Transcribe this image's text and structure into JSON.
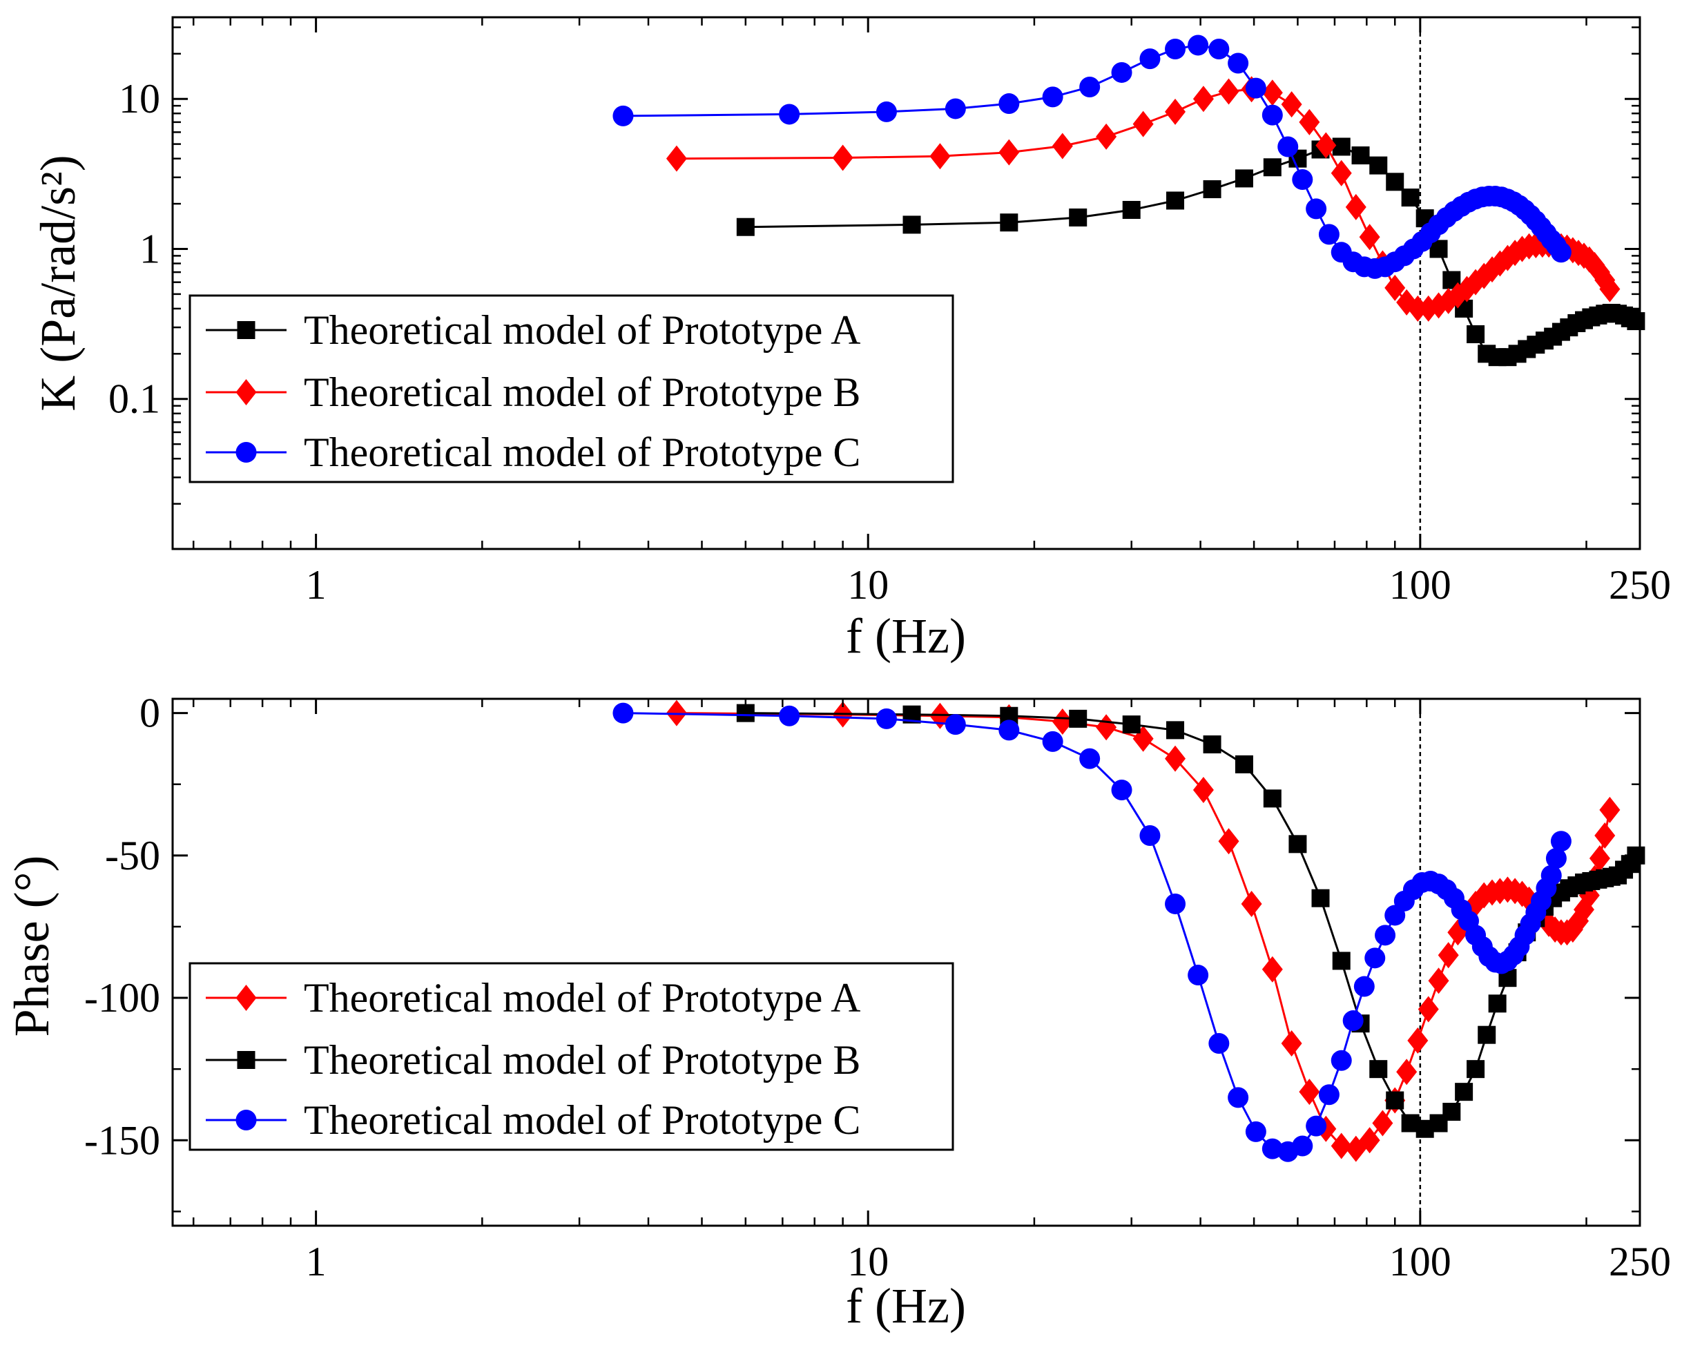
{
  "chart_data": [
    {
      "type": "line",
      "id": "magnitude",
      "xlabel": "f (Hz)",
      "ylabel": "K (Pa/rad/s²)",
      "xscale": "log",
      "yscale": "log",
      "xlim": [
        0.55,
        250
      ],
      "ylim": [
        0.01,
        35
      ],
      "xticks": [
        1,
        10,
        100,
        250
      ],
      "xtick_labels": [
        "1",
        "10",
        "100",
        "250"
      ],
      "yticks": [
        0.1,
        1,
        10
      ],
      "ytick_labels": [
        "0.1",
        "1",
        "10"
      ],
      "ref_line_x": 100,
      "legend_location": "center-left",
      "series": [
        {
          "name": "Theoretical model of Prototype A",
          "color": "#000000",
          "marker": "square",
          "x": [
            6,
            12,
            18,
            24,
            30,
            36,
            42,
            48,
            54,
            60,
            66,
            72,
            78,
            84,
            90,
            96,
            102,
            108,
            114,
            120,
            126,
            132,
            138,
            144,
            150,
            156,
            162,
            168,
            174,
            180,
            186,
            192,
            198,
            204,
            210,
            216,
            222,
            228,
            234,
            240,
            246
          ],
          "y": [
            1.4,
            1.45,
            1.5,
            1.62,
            1.82,
            2.1,
            2.5,
            2.95,
            3.5,
            4.0,
            4.6,
            4.8,
            4.2,
            3.6,
            2.8,
            2.2,
            1.6,
            1.0,
            0.62,
            0.4,
            0.27,
            0.2,
            0.19,
            0.19,
            0.2,
            0.215,
            0.23,
            0.245,
            0.26,
            0.28,
            0.3,
            0.32,
            0.335,
            0.35,
            0.36,
            0.37,
            0.375,
            0.37,
            0.36,
            0.345,
            0.33
          ]
        },
        {
          "name": "Theoretical model of Prototype B",
          "color": "#ff0000",
          "marker": "diamond",
          "x": [
            4.5,
            9,
            13.5,
            18,
            22.5,
            27,
            31.5,
            36,
            40.5,
            45,
            49.5,
            54,
            58.5,
            63,
            67.5,
            72,
            76.5,
            81,
            85.5,
            90,
            94.5,
            99,
            103.5,
            108,
            112.5,
            117,
            121.5,
            126,
            130.5,
            135,
            139.5,
            144,
            148.5,
            153,
            157.5,
            162,
            166.5,
            171,
            175.5,
            180,
            184.5,
            189,
            193.5,
            198,
            202.5,
            207,
            211.5,
            216,
            220.5
          ],
          "y": [
            4.0,
            4.05,
            4.15,
            4.4,
            4.85,
            5.6,
            6.8,
            8.2,
            10.0,
            11.2,
            11.6,
            11.0,
            9.2,
            7.0,
            4.9,
            3.2,
            1.9,
            1.2,
            0.8,
            0.55,
            0.44,
            0.4,
            0.4,
            0.42,
            0.45,
            0.49,
            0.54,
            0.6,
            0.66,
            0.73,
            0.8,
            0.87,
            0.94,
            1.0,
            1.04,
            1.06,
            1.07,
            1.07,
            1.06,
            1.04,
            1.02,
            0.98,
            0.94,
            0.9,
            0.85,
            0.78,
            0.7,
            0.62,
            0.54
          ]
        },
        {
          "name": "Theoretical model of Prototype C",
          "color": "#0000ff",
          "marker": "circle",
          "x": [
            3.6,
            7.2,
            10.8,
            14.4,
            18,
            21.6,
            25.2,
            28.8,
            32.4,
            36,
            39.6,
            43.2,
            46.8,
            50.4,
            54,
            57.6,
            61.2,
            64.8,
            68.4,
            72,
            75.6,
            79.2,
            82.8,
            86.4,
            90,
            93.6,
            97.2,
            100.8,
            104.4,
            108,
            111.6,
            115.2,
            118.8,
            122.4,
            126,
            129.6,
            133.2,
            136.8,
            140.4,
            144,
            147.6,
            151.2,
            154.8,
            158.4,
            162,
            165.6,
            169.2,
            172.8,
            176.4,
            180
          ],
          "y": [
            7.7,
            7.9,
            8.2,
            8.6,
            9.3,
            10.3,
            12.0,
            15.0,
            18.5,
            21.5,
            22.8,
            21.5,
            17.3,
            11.8,
            7.8,
            4.8,
            2.9,
            1.85,
            1.25,
            0.95,
            0.82,
            0.76,
            0.74,
            0.76,
            0.82,
            0.9,
            1.0,
            1.12,
            1.28,
            1.45,
            1.62,
            1.78,
            1.92,
            2.05,
            2.15,
            2.22,
            2.25,
            2.25,
            2.22,
            2.15,
            2.06,
            1.95,
            1.82,
            1.68,
            1.54,
            1.4,
            1.27,
            1.15,
            1.05,
            0.95
          ]
        }
      ]
    },
    {
      "type": "line",
      "id": "phase",
      "xlabel": "f (Hz)",
      "ylabel": "Phase (°)",
      "xscale": "log",
      "yscale": "linear",
      "xlim": [
        0.55,
        250
      ],
      "ylim": [
        -180,
        5
      ],
      "xticks": [
        1,
        10,
        100,
        250
      ],
      "xtick_labels": [
        "1",
        "10",
        "100",
        "250"
      ],
      "yticks": [
        0,
        -50,
        -100,
        -150
      ],
      "ytick_labels": [
        "0",
        "-50",
        "-100",
        "-150"
      ],
      "ref_line_x": 100,
      "legend_location": "lower-left",
      "series": [
        {
          "name": "Theoretical model of Prototype A",
          "color": "#ff0000",
          "marker": "diamond",
          "x": [
            4.5,
            9,
            13.5,
            18,
            22.5,
            27,
            31.5,
            36,
            40.5,
            45,
            49.5,
            54,
            58.5,
            63,
            67.5,
            72,
            76.5,
            81,
            85.5,
            90,
            94.5,
            99,
            103.5,
            108,
            112.5,
            117,
            121.5,
            126,
            130.5,
            135,
            139.5,
            144,
            148.5,
            153,
            157.5,
            162,
            166.5,
            171,
            175.5,
            180,
            184.5,
            189,
            193.5,
            198,
            202.5,
            207,
            211.5,
            216,
            220.5
          ],
          "y": [
            0,
            -0.5,
            -1,
            -1.5,
            -3,
            -5,
            -9,
            -16,
            -27,
            -45,
            -67,
            -90,
            -116,
            -133,
            -146,
            -152,
            -153,
            -150,
            -144,
            -136,
            -126,
            -115,
            -104,
            -94,
            -85,
            -77,
            -71,
            -67,
            -64,
            -63,
            -62.5,
            -62,
            -62.5,
            -63.5,
            -65.5,
            -68,
            -71,
            -74,
            -76,
            -77,
            -77,
            -76,
            -73,
            -69,
            -64,
            -58,
            -51,
            -43,
            -34
          ]
        },
        {
          "name": "Theoretical model of Prototype B",
          "color": "#000000",
          "marker": "square",
          "x": [
            6,
            12,
            18,
            24,
            30,
            36,
            42,
            48,
            54,
            60,
            66,
            72,
            78,
            84,
            90,
            96,
            102,
            108,
            114,
            120,
            126,
            132,
            138,
            144,
            150,
            156,
            162,
            168,
            174,
            180,
            186,
            192,
            198,
            204,
            210,
            216,
            222,
            228,
            234,
            240,
            246
          ],
          "y": [
            0,
            -0.5,
            -1,
            -2,
            -4,
            -6,
            -11,
            -18,
            -30,
            -46,
            -65,
            -87,
            -109,
            -125,
            -136,
            -144,
            -146,
            -144,
            -140,
            -133,
            -125,
            -113,
            -102,
            -93,
            -84,
            -77,
            -72,
            -68,
            -65,
            -63,
            -61.5,
            -60.5,
            -59.5,
            -59,
            -58.5,
            -58,
            -57.5,
            -57,
            -55,
            -53,
            -50
          ]
        },
        {
          "name": "Theoretical model of Prototype C",
          "color": "#0000ff",
          "marker": "circle",
          "x": [
            3.6,
            7.2,
            10.8,
            14.4,
            18,
            21.6,
            25.2,
            28.8,
            32.4,
            36,
            39.6,
            43.2,
            46.8,
            50.4,
            54,
            57.6,
            61.2,
            64.8,
            68.4,
            72,
            75.6,
            79.2,
            82.8,
            86.4,
            90,
            93.6,
            97.2,
            100.8,
            104.4,
            108,
            111.6,
            115.2,
            118.8,
            122.4,
            126,
            129.6,
            133.2,
            136.8,
            140.4,
            144,
            147.6,
            151.2,
            154.8,
            158.4,
            162,
            165.6,
            169.2,
            172.8,
            176.4,
            180
          ],
          "y": [
            0,
            -1,
            -2,
            -4,
            -6,
            -10,
            -16,
            -27,
            -43,
            -67,
            -92,
            -116,
            -135,
            -147,
            -153,
            -154,
            -152,
            -145,
            -134,
            -122,
            -108,
            -96,
            -86,
            -78,
            -71,
            -66,
            -62,
            -59.5,
            -59,
            -60,
            -62,
            -65,
            -69,
            -73,
            -78,
            -82,
            -85.5,
            -87.5,
            -88,
            -87,
            -85,
            -82,
            -78,
            -74,
            -70,
            -66,
            -61.5,
            -57,
            -51,
            -45
          ]
        }
      ]
    }
  ]
}
